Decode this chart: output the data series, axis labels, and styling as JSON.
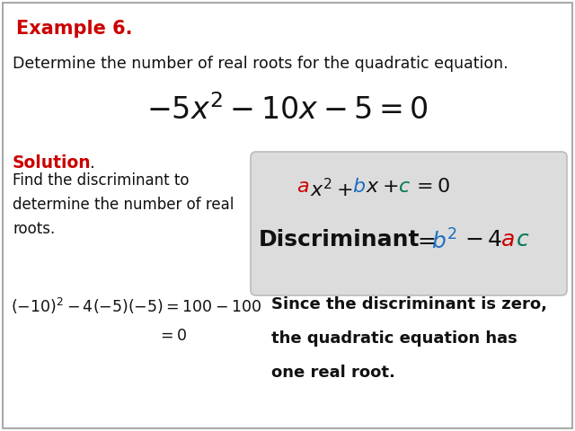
{
  "bg_color": "#ffffff",
  "title": "Example 6.",
  "title_color": "#cc0000",
  "subtitle": "Determine the number of real roots for the quadratic equation.",
  "solution_color": "#cc0000",
  "solution_text": "Find the discriminant to\ndetermine the number of real\nroots.",
  "calc_line1": "$(-10)^2 - 4(-5)(-5) = 100 - 100$",
  "calc_line2": "$= 0$",
  "result_line1": "Since the discriminant is zero,",
  "result_line2": "the quadratic equation has",
  "result_line3": "one real root.",
  "color_a": "#cc0000",
  "color_b": "#1a6fc4",
  "color_c": "#007755",
  "box_bg": "#dcdcdc",
  "box_border": "#bbbbbb",
  "fig_border": "#aaaaaa"
}
